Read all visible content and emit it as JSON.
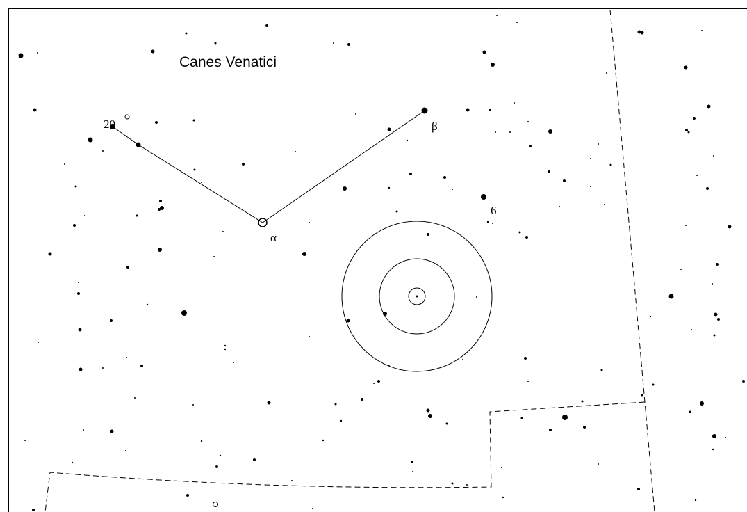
{
  "labels": {
    "constellation": "Canes Venatici",
    "star_20": "20",
    "beta": "β",
    "alpha": "α",
    "star_6": "6"
  }
}
